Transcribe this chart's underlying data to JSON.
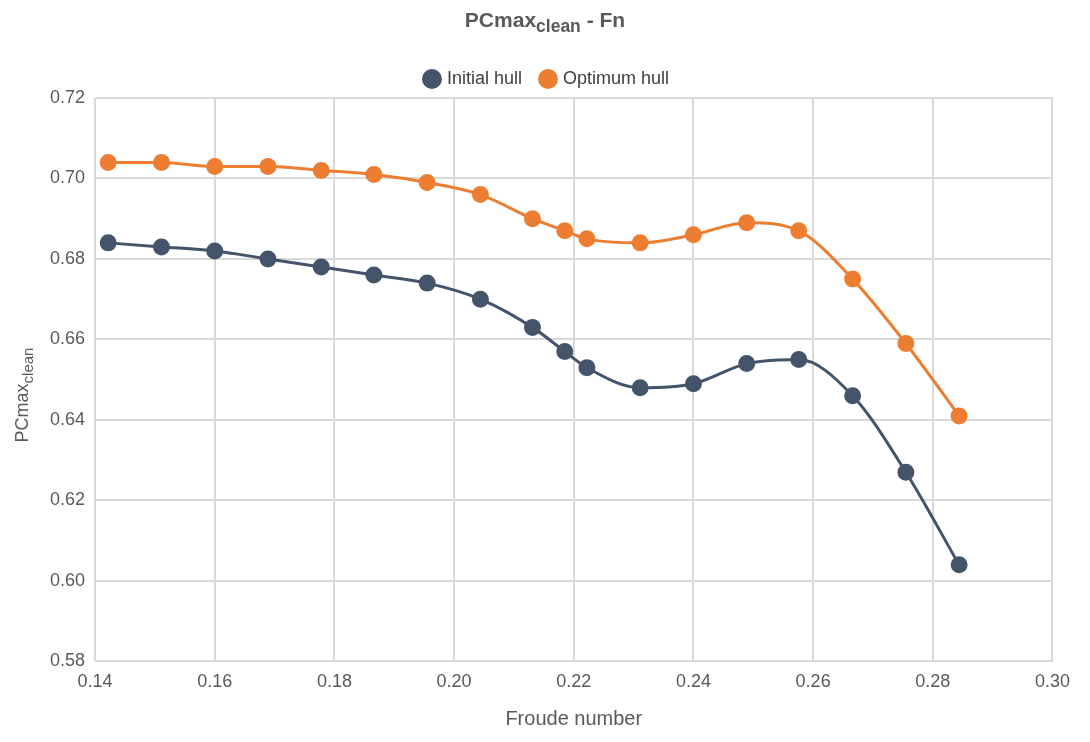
{
  "chart_data": {
    "type": "line",
    "title": "PCmax$_{clean}$ - Fn",
    "xlabel": "Froude number",
    "ylabel": "PCmax$_{clean}$",
    "x": [
      0.1422,
      0.1511,
      0.16,
      0.1689,
      0.1778,
      0.1866,
      0.1955,
      0.2044,
      0.2131,
      0.2185,
      0.2222,
      0.2311,
      0.24,
      0.2489,
      0.2576,
      0.2666,
      0.2755,
      0.2844
    ],
    "series": [
      {
        "name": "Initial hull",
        "color": "#44546a",
        "values": [
          0.684,
          0.683,
          0.682,
          0.68,
          0.678,
          0.676,
          0.674,
          0.67,
          0.663,
          0.657,
          0.653,
          0.648,
          0.649,
          0.654,
          0.655,
          0.646,
          0.627,
          0.604
        ]
      },
      {
        "name": "Optimum hull",
        "color": "#ed7d31",
        "values": [
          0.704,
          0.704,
          0.703,
          0.703,
          0.702,
          0.701,
          0.699,
          0.696,
          0.69,
          0.687,
          0.685,
          0.684,
          0.686,
          0.689,
          0.687,
          0.675,
          0.659,
          0.641
        ]
      }
    ],
    "xlim": [
      0.14,
      0.3
    ],
    "xticks": [
      {
        "value": 0.14,
        "label": "0.14"
      },
      {
        "value": 0.16,
        "label": "0.16"
      },
      {
        "value": 0.18,
        "label": "0.18"
      },
      {
        "value": 0.2,
        "label": "0.20"
      },
      {
        "value": 0.22,
        "label": "0.22"
      },
      {
        "value": 0.24,
        "label": "0.24"
      },
      {
        "value": 0.26,
        "label": "0.26"
      },
      {
        "value": 0.28,
        "label": "0.28"
      },
      {
        "value": 0.3,
        "label": "0.30"
      }
    ],
    "ylim": [
      0.58,
      0.72
    ],
    "yticks": [
      {
        "value": 0.58,
        "label": "0.58"
      },
      {
        "value": 0.6,
        "label": "0.60"
      },
      {
        "value": 0.62,
        "label": "0.62"
      },
      {
        "value": 0.64,
        "label": "0.64"
      },
      {
        "value": 0.66,
        "label": "0.66"
      },
      {
        "value": 0.68,
        "label": "0.68"
      },
      {
        "value": 0.7,
        "label": "0.70"
      },
      {
        "value": 0.72,
        "label": "0.72"
      }
    ],
    "grid": true,
    "legend": "top",
    "marker": "circle",
    "line_style": "solid"
  }
}
